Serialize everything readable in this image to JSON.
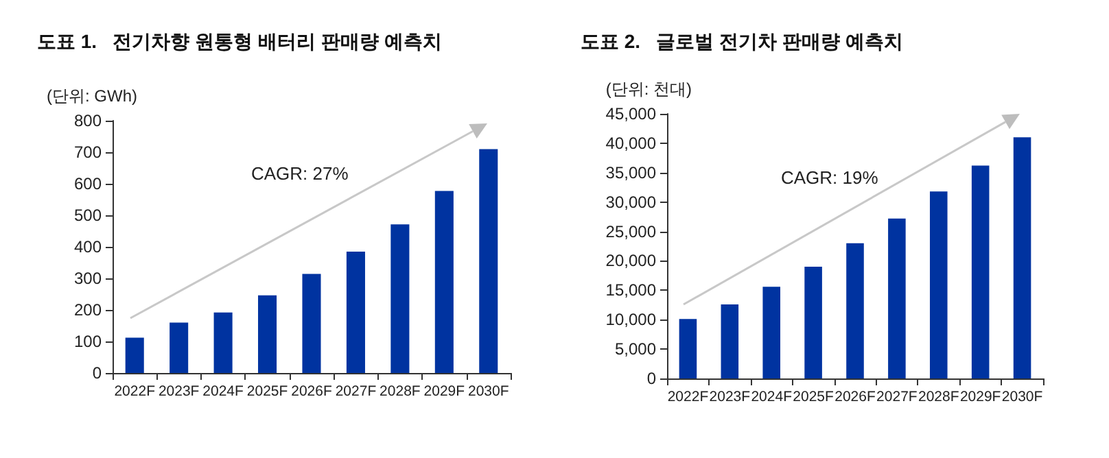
{
  "chart_data": [
    {
      "type": "bar",
      "title": "도표 1.   전기차향 원통형 배터리 판매량 예측치",
      "ylabel": "(단위: GWh)",
      "categories": [
        "2022F",
        "2023F",
        "2024F",
        "2025F",
        "2026F",
        "2027F",
        "2028F",
        "2029F",
        "2030F"
      ],
      "values": [
        112,
        160,
        192,
        246,
        314,
        385,
        471,
        577,
        710
      ],
      "color": "#0033a0",
      "ylim": [
        0,
        800
      ],
      "yticks": [
        0,
        100,
        200,
        300,
        400,
        500,
        600,
        700,
        800
      ],
      "grid": false,
      "annotations": [
        "CAGR: 27%"
      ]
    },
    {
      "type": "bar",
      "title": "도표 2.   글로벌 전기차 판매량 예측치",
      "ylabel": "(단위: 천대)",
      "categories": [
        "2022F",
        "2023F",
        "2024F",
        "2025F",
        "2026F",
        "2027F",
        "2028F",
        "2029F",
        "2030F"
      ],
      "values": [
        10100,
        12600,
        15600,
        19000,
        23000,
        27200,
        31800,
        36200,
        41000
      ],
      "color": "#0033a0",
      "ylim": [
        0,
        45000
      ],
      "yticks": [
        0,
        {
          "value": 5000,
          "label": "5,000"
        },
        {
          "value": 10000,
          "label": "10,000"
        },
        {
          "value": 15000,
          "label": "15,000"
        },
        {
          "value": 20000,
          "label": "20,000"
        },
        {
          "value": 25000,
          "label": "25,000"
        },
        {
          "value": 30000,
          "label": "30,000"
        },
        {
          "value": 35000,
          "label": "35,000"
        },
        {
          "value": 40000,
          "label": "40,000"
        },
        {
          "value": 45000,
          "label": "45,000"
        }
      ],
      "grid": false,
      "annotations": [
        "CAGR: 19%"
      ]
    }
  ]
}
